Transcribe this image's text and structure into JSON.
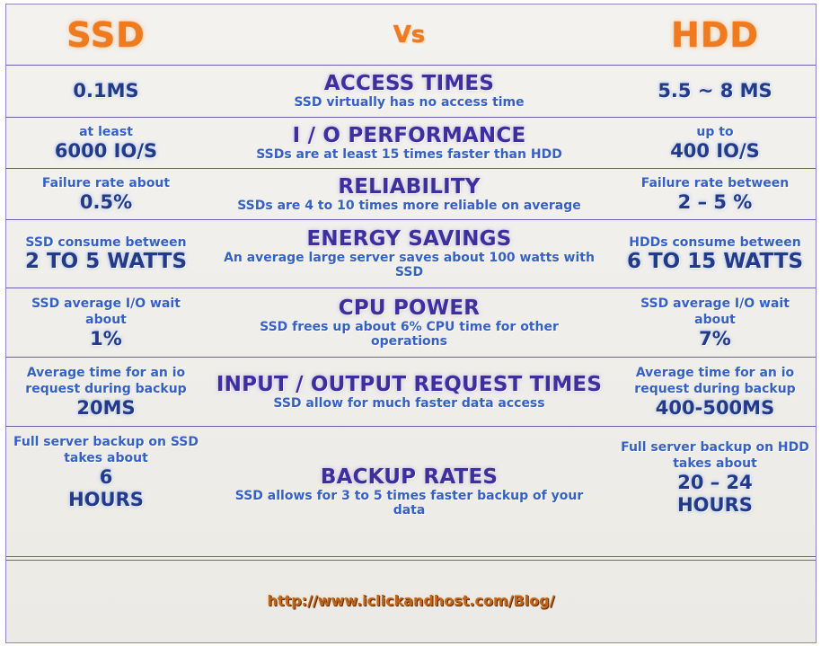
{
  "header": {
    "left": "SSD",
    "middle": "Vs",
    "right": "HDD"
  },
  "rows": [
    {
      "title": "ACCESS TIMES",
      "desc": "SSD virtually has no access time",
      "ssd": {
        "big": "0.1MS"
      },
      "hdd": {
        "big": "5.5 ~ 8 MS"
      }
    },
    {
      "title": "I / O PERFORMANCE",
      "desc": "SSDs are at least 15 times faster than HDD",
      "ssd": {
        "small": "at least",
        "big": "6000 IO/S"
      },
      "hdd": {
        "small": "up to",
        "big": "400 IO/S"
      }
    },
    {
      "title": "RELIABILITY",
      "desc": "SSDs are 4 to 10 times more reliable on average",
      "ssd": {
        "small": "Failure rate about",
        "big": "0.5%"
      },
      "hdd": {
        "small": "Failure rate between",
        "big": "2 – 5 %"
      }
    },
    {
      "title": "ENERGY SAVINGS",
      "desc": "An average large server saves about 100 watts with SSD",
      "ssd": {
        "small": "SSD consume between",
        "big": "2 TO 5 WATTS"
      },
      "hdd": {
        "small": "HDDs consume between",
        "big": "6 TO 15 WATTS"
      }
    },
    {
      "title": "CPU POWER",
      "desc": "SSD frees up about 6% CPU time for other operations",
      "ssd": {
        "small": "SSD average I/O wait about",
        "big": "1%"
      },
      "hdd": {
        "small": "SSD average I/O wait about",
        "big": "7%"
      }
    },
    {
      "title": "INPUT / OUTPUT REQUEST TIMES",
      "desc": "SSD allow for much faster data access",
      "ssd": {
        "small": "Average time for an io request during backup",
        "big": "20MS"
      },
      "hdd": {
        "small": "Average time for an io request during backup",
        "big": "400-500MS"
      }
    },
    {
      "title": "BACKUP RATES",
      "desc": "SSD allows for 3 to 5 times faster backup of your data",
      "ssd": {
        "small": "Full server backup on SSD takes about",
        "big": "6",
        "big2": "HOURS"
      },
      "hdd": {
        "small": "Full server backup on HDD takes about",
        "big": "20 – 24",
        "big2": "HOURS"
      }
    }
  ],
  "footer": {
    "link": "http://www.iclickandhost.com/Blog/"
  },
  "colors": {
    "accent_orange": "#f07a1e",
    "title_purple": "#3d2f9c",
    "text_blue": "#3560c4",
    "value_navy": "#233a88"
  }
}
